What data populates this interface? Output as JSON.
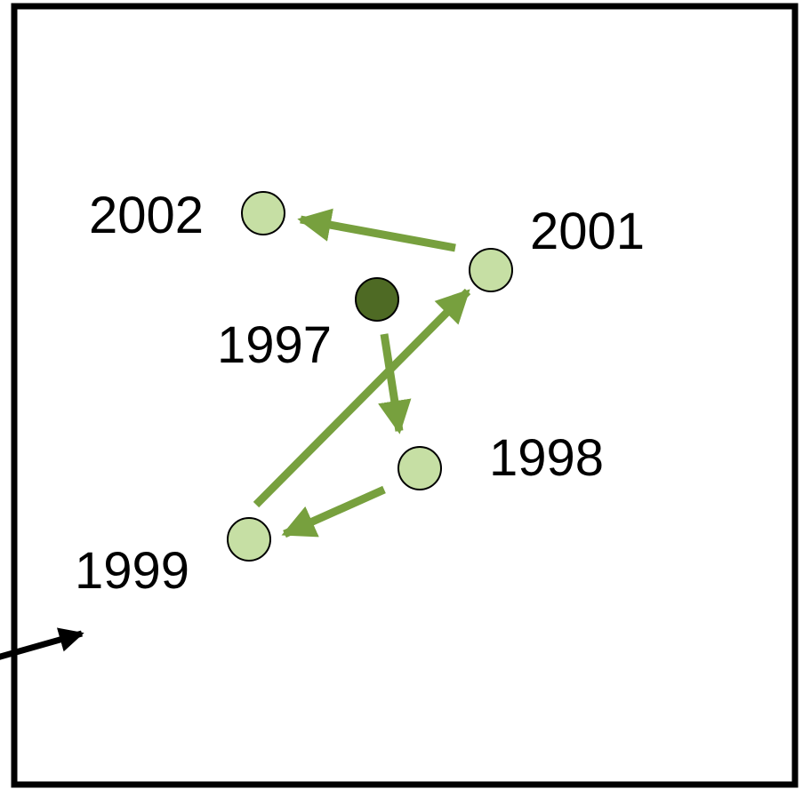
{
  "diagram": {
    "points": [
      {
        "label": "1997",
        "highlighted": true
      },
      {
        "label": "1998",
        "highlighted": false
      },
      {
        "label": "1999",
        "highlighted": false
      },
      {
        "label": "2001",
        "highlighted": false
      },
      {
        "label": "2002",
        "highlighted": false
      }
    ],
    "trajectory": [
      "1997",
      "1998",
      "1999",
      "2001",
      "2002"
    ],
    "colors": {
      "frame": "#000000",
      "point_fill": "#c6dfa4",
      "point_stroke": "#000000",
      "highlight_fill": "#4e6a24",
      "arrow": "#77a03e",
      "incoming_arrow": "#000000",
      "label": "#000000"
    }
  }
}
